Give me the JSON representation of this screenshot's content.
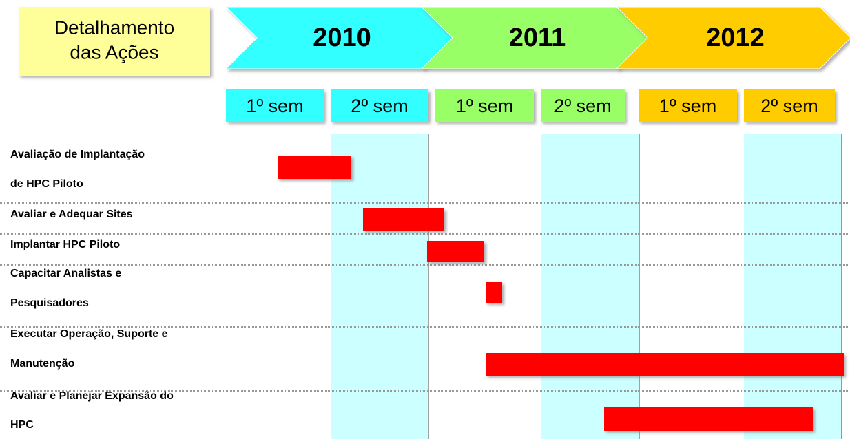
{
  "header": {
    "title": [
      "Detalhamento",
      "das Ações"
    ]
  },
  "years": [
    "2010",
    "2011",
    "2012"
  ],
  "semesters": [
    "1º sem",
    "2º sem",
    "1º sem",
    "2º sem",
    "1º sem",
    "2º sem"
  ],
  "tasks": [
    {
      "label": [
        "Avaliação de Implantação",
        "de HPC Piloto"
      ]
    },
    {
      "label": [
        "Avaliar e Adequar Sites"
      ]
    },
    {
      "label": [
        "Implantar HPC Piloto"
      ]
    },
    {
      "label": [
        "Capacitar Analistas e",
        "Pesquisadores"
      ]
    },
    {
      "label": [
        "Executar Operação, Suporte e",
        "Manutenção"
      ]
    },
    {
      "label": [
        "Avaliar e Planejar Expansão do",
        "HPC"
      ]
    }
  ]
}
